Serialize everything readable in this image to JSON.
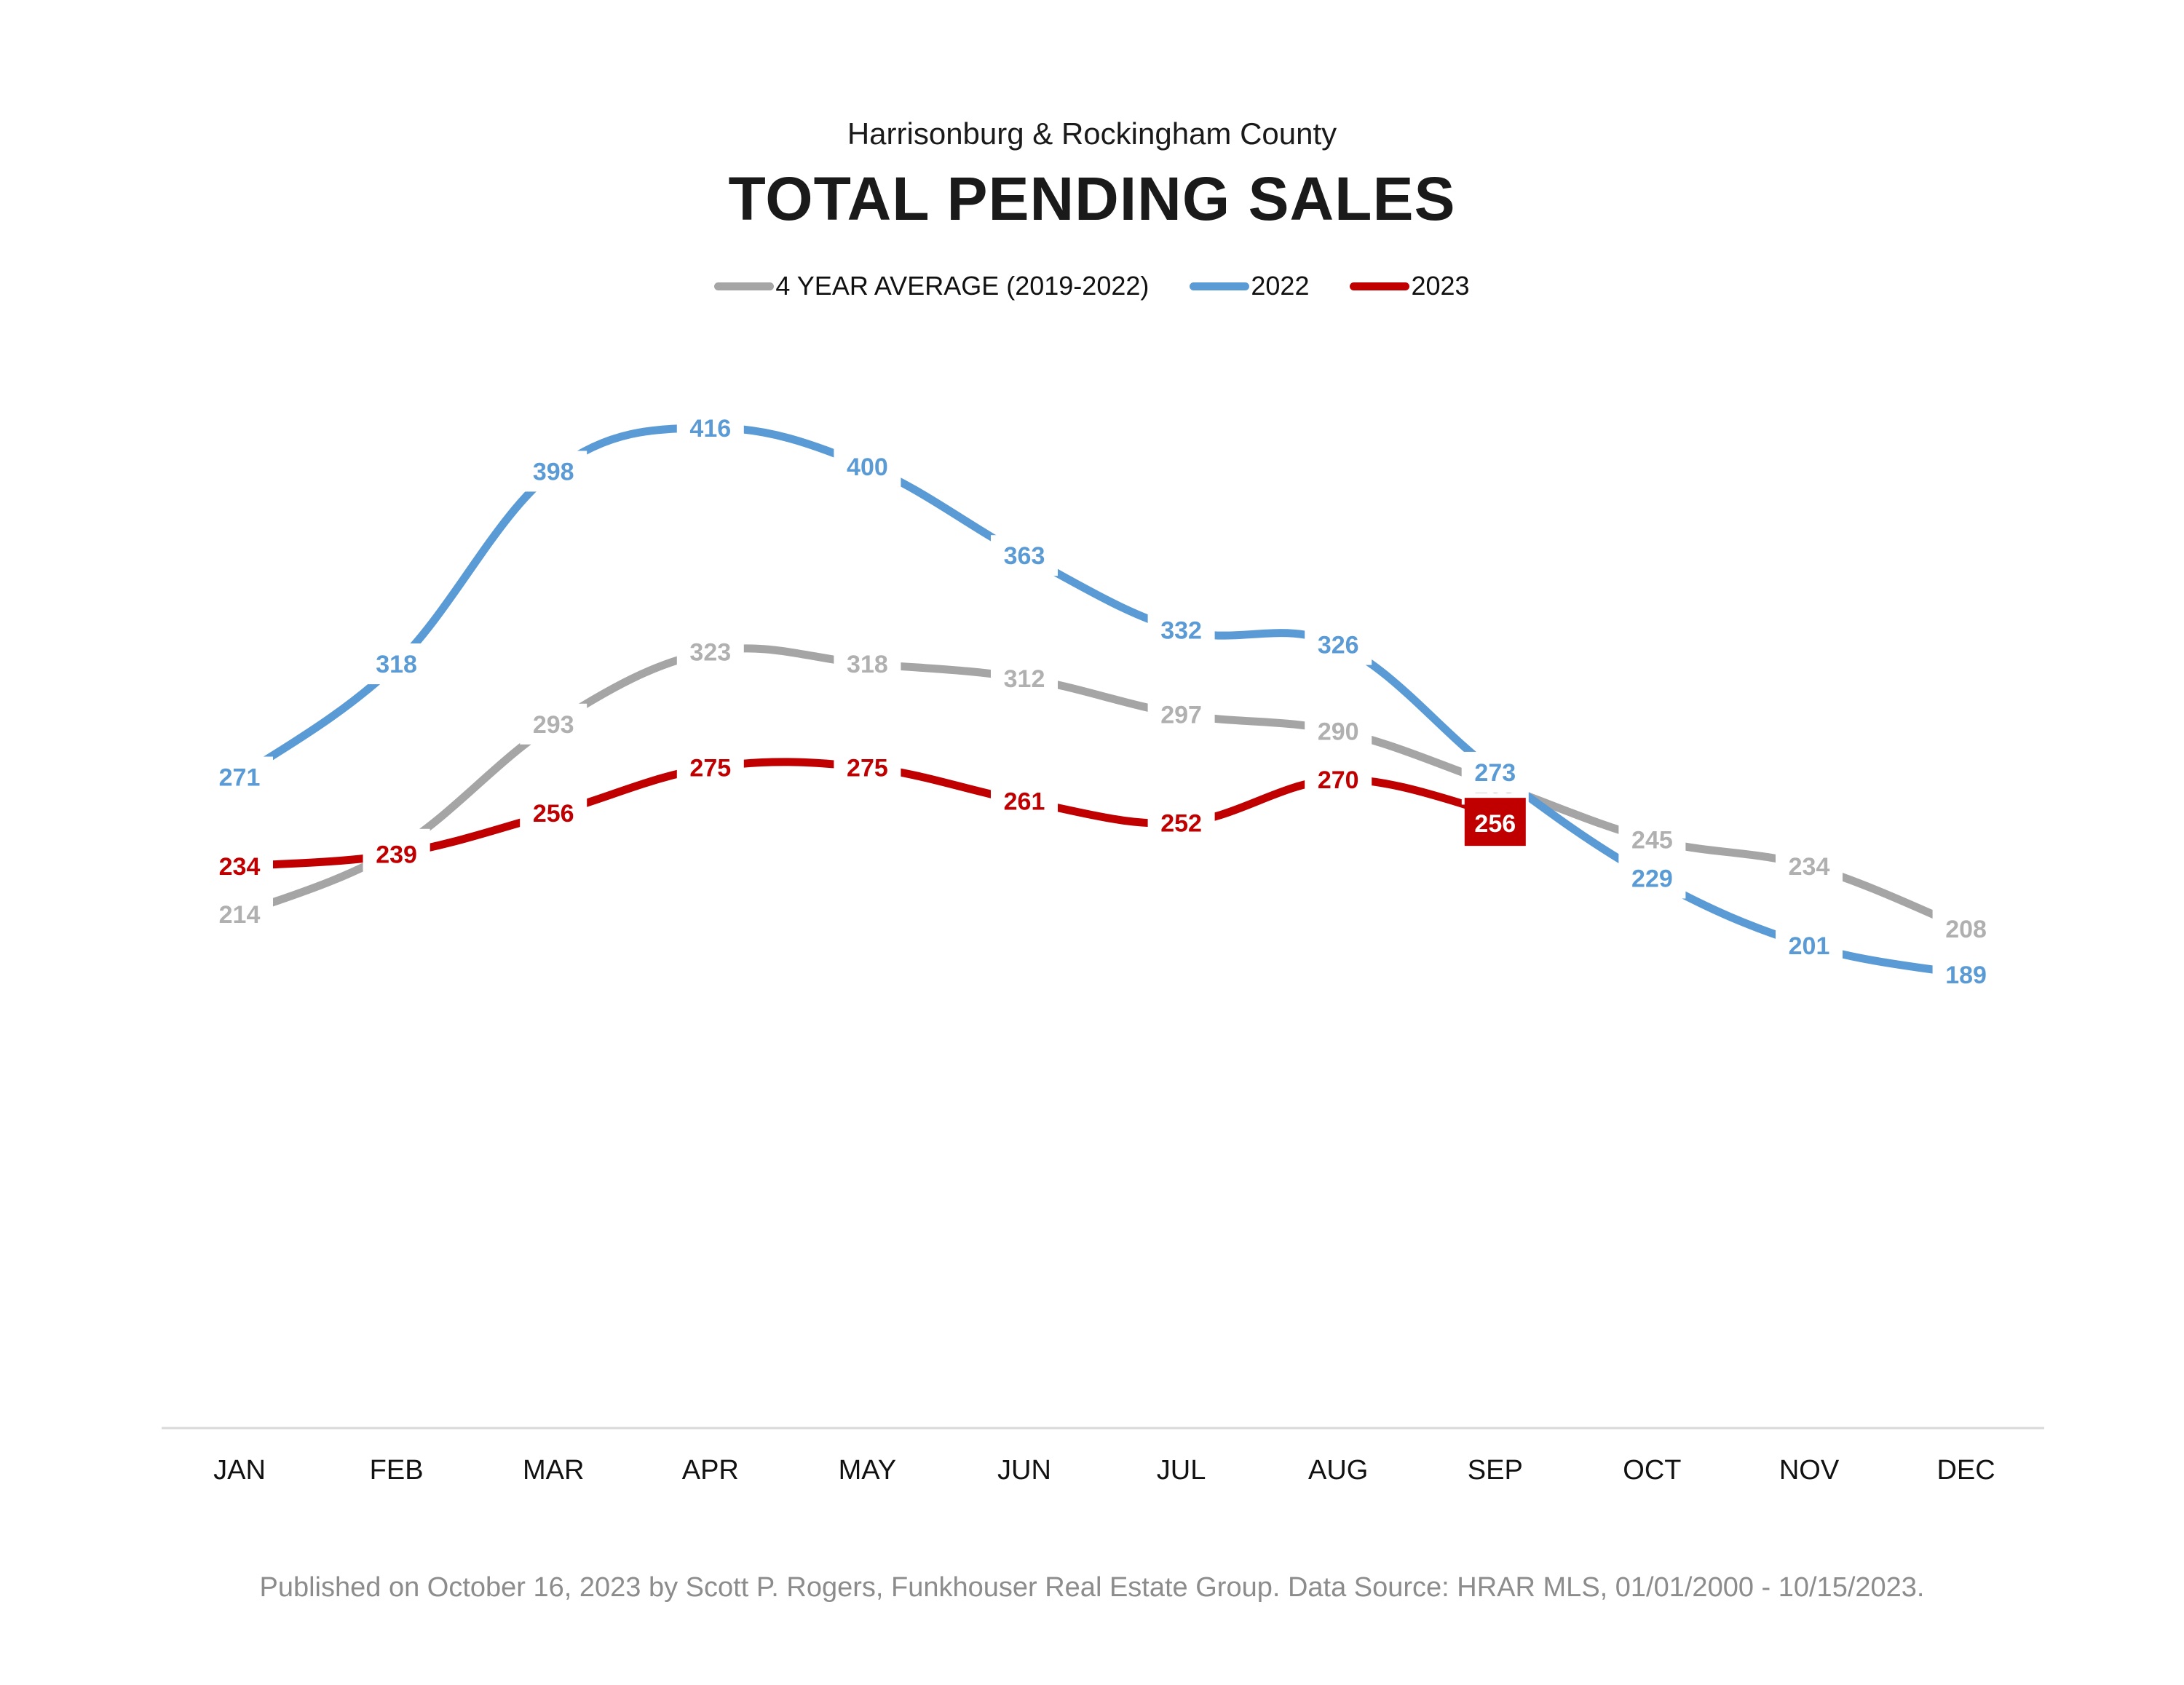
{
  "chart_data": {
    "type": "line",
    "subtitle": "Harrisonburg & Rockingham County",
    "title": "TOTAL PENDING SALES",
    "categories": [
      "JAN",
      "FEB",
      "MAR",
      "APR",
      "MAY",
      "JUN",
      "JUL",
      "AUG",
      "SEP",
      "OCT",
      "NOV",
      "DEC"
    ],
    "series": [
      {
        "name": "4 YEAR AVERAGE (2019-2022)",
        "color": "#a5a5a5",
        "label_color": "#b0b0b0",
        "values": [
          214,
          241,
          293,
          323,
          318,
          312,
          297,
          290,
          268,
          245,
          234,
          208
        ]
      },
      {
        "name": "2022",
        "color": "#5b9bd5",
        "label_color": "#5b9bd5",
        "values": [
          271,
          318,
          398,
          416,
          400,
          363,
          332,
          326,
          273,
          229,
          201,
          189
        ]
      },
      {
        "name": "2023",
        "color": "#c00000",
        "label_color": "#c00000",
        "values": [
          234,
          239,
          256,
          275,
          275,
          261,
          252,
          270,
          256
        ]
      }
    ],
    "highlight": {
      "series": "2023",
      "category": "SEP",
      "value": 256,
      "label_color": "#ffffff",
      "box_color": "#c00000"
    },
    "xlabel": "",
    "ylabel": "",
    "ylim": [
      0,
      450
    ],
    "grid": false,
    "legend_position": "top-center",
    "footer": "Published on October 16, 2023 by Scott P. Rogers, Funkhouser Real Estate Group. Data Source: HRAR MLS, 01/01/2000 - 10/15/2023."
  }
}
